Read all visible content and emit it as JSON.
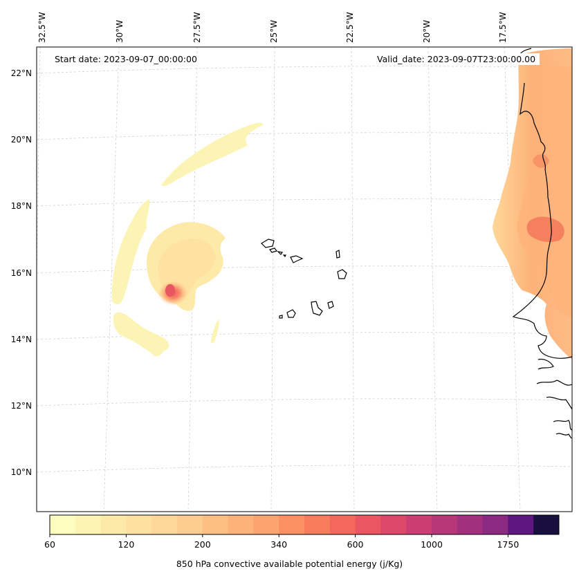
{
  "annotations": {
    "start_date": "Start date: 2023-09-07_00:00:00",
    "valid_date": "Valid_date: 2023-09-07T23:00:00.00"
  },
  "longitude_labels": [
    "32.5°W",
    "30°W",
    "27.5°W",
    "25°W",
    "22.5°W",
    "20°W",
    "17.5°W"
  ],
  "latitude_labels": [
    "22°N",
    "20°N",
    "18°N",
    "16°N",
    "14°N",
    "12°N",
    "10°N"
  ],
  "colorbar": {
    "title": "850 hPa convective available potential energy (j/Kg)",
    "tick_labels": [
      "60",
      "120",
      "200",
      "340",
      "600",
      "1000",
      "1750"
    ],
    "colors": [
      "#fcfdbf",
      "#fdf3b3",
      "#feeaa8",
      "#fee0a0",
      "#fed799",
      "#fecc8f",
      "#febf84",
      "#fdb27a",
      "#fda370",
      "#fc9065",
      "#f97c5d",
      "#f4695c",
      "#ea5661",
      "#dc4869",
      "#cb3e71",
      "#b73779",
      "#a3307e",
      "#8c2981",
      "#5d177f",
      "#180f3e"
    ]
  },
  "map_features": {
    "field": "850 hPa CAPE shaded contours",
    "coastline_color": "#000000",
    "gridlines": "dashed light gray"
  }
}
